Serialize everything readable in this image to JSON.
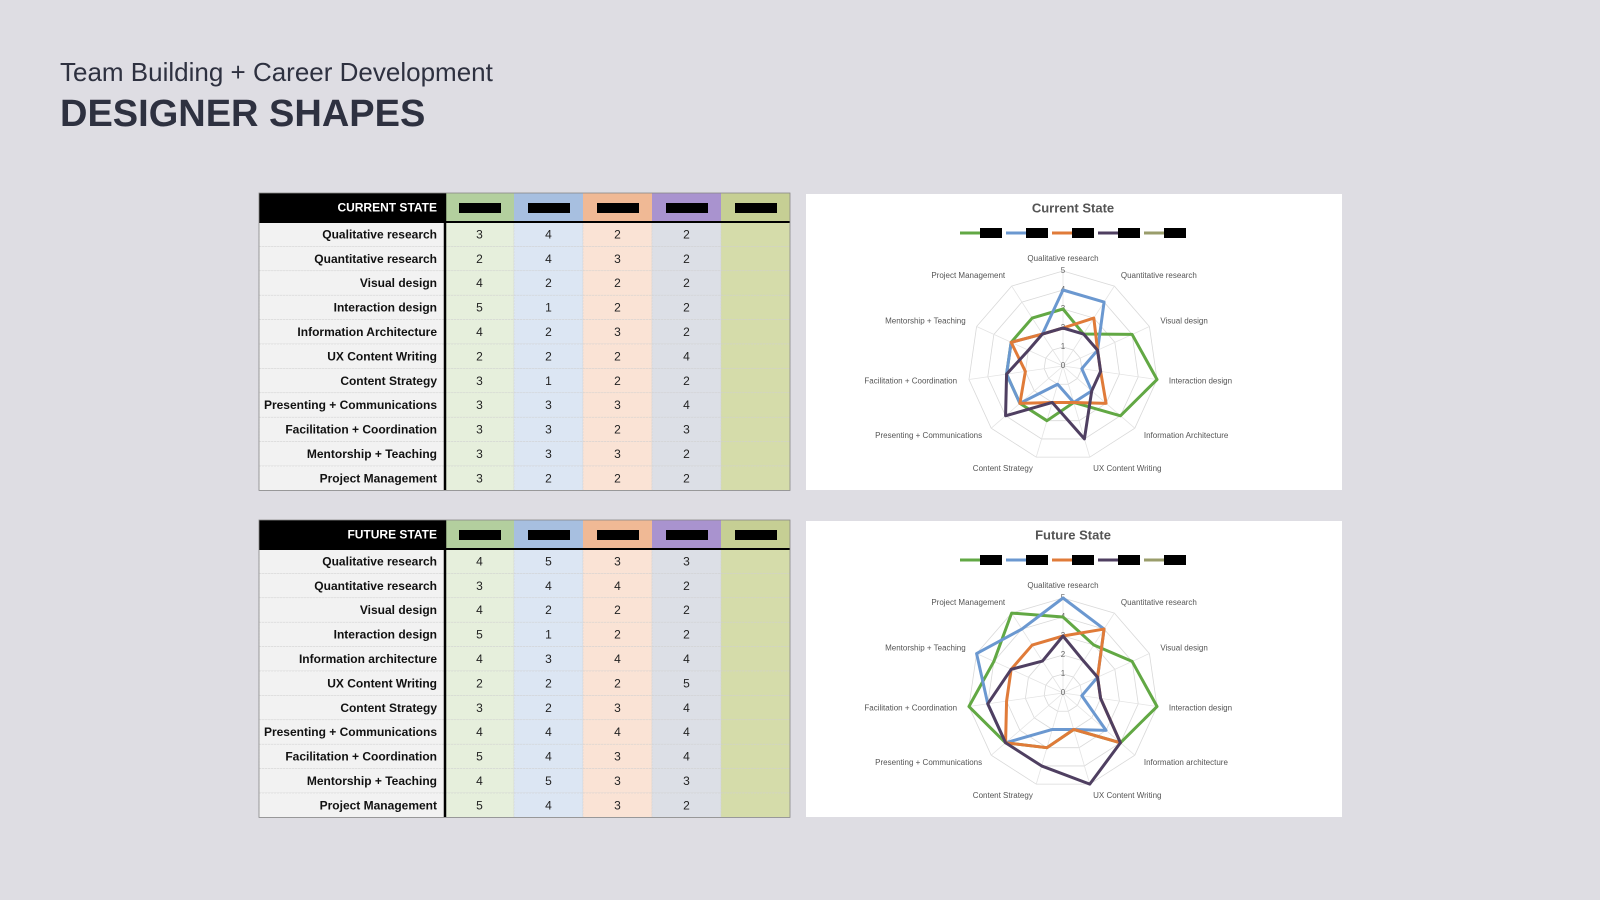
{
  "title": "Team Building + Career Development",
  "heading": "DESIGNER SHAPES",
  "tables": [
    {
      "header": "CURRENT STATE"
    },
    {
      "header": "FUTURE STATE"
    }
  ],
  "chart_data": [
    {
      "type": "radar",
      "title": "Current State",
      "categories": [
        "Qualitative research",
        "Quantitative research",
        "Visual design",
        "Interaction design",
        "Information Architecture",
        "UX Content Writing",
        "Content Strategy",
        "Presenting + Communications",
        "Facilitation + Coordination",
        "Mentorship + Teaching",
        "Project Management"
      ],
      "series": [
        {
          "color": "#62a844",
          "values": [
            3,
            2,
            4,
            5,
            4,
            2,
            3,
            3,
            3,
            3,
            3
          ]
        },
        {
          "color": "#6b98d0",
          "values": [
            4,
            4,
            2,
            1,
            2,
            2,
            1,
            3,
            3,
            3,
            2
          ]
        },
        {
          "color": "#e07b39",
          "values": [
            2,
            3,
            2,
            2,
            3,
            2,
            2,
            3,
            2,
            3,
            2
          ]
        },
        {
          "color": "#4f3f61",
          "values": [
            2,
            2,
            2,
            2,
            2,
            4,
            2,
            4,
            3,
            2,
            2
          ]
        },
        {
          "color": "#9a9d6b",
          "values": [
            null,
            null,
            null,
            null,
            null,
            null,
            null,
            null,
            null,
            null,
            null
          ]
        }
      ],
      "rlim": [
        0,
        5
      ],
      "rticks": [
        0,
        1,
        2,
        3,
        4,
        5
      ],
      "grid": true
    },
    {
      "type": "radar",
      "title": "Future State",
      "categories": [
        "Qualitative research",
        "Quantitative research",
        "Visual design",
        "Interaction design",
        "Information architecture",
        "UX Content Writing",
        "Content Strategy",
        "Presenting + Communications",
        "Facilitation + Coordination",
        "Mentorship + Teaching",
        "Project Management"
      ],
      "series": [
        {
          "color": "#62a844",
          "values": [
            4,
            3,
            4,
            5,
            4,
            2,
            3,
            4,
            5,
            4,
            5
          ]
        },
        {
          "color": "#6b98d0",
          "values": [
            5,
            4,
            2,
            1,
            3,
            2,
            2,
            4,
            4,
            5,
            4
          ]
        },
        {
          "color": "#e07b39",
          "values": [
            3,
            4,
            2,
            2,
            4,
            2,
            3,
            4,
            3,
            3,
            3
          ]
        },
        {
          "color": "#4f3f61",
          "values": [
            3,
            2,
            2,
            2,
            4,
            5,
            4,
            4,
            4,
            3,
            2
          ]
        },
        {
          "color": "#9a9d6b",
          "values": [
            null,
            null,
            null,
            null,
            null,
            null,
            null,
            null,
            null,
            null,
            null
          ]
        }
      ],
      "rlim": [
        0,
        5
      ],
      "rticks": [
        0,
        1,
        2,
        3,
        4,
        5
      ],
      "grid": true
    }
  ]
}
